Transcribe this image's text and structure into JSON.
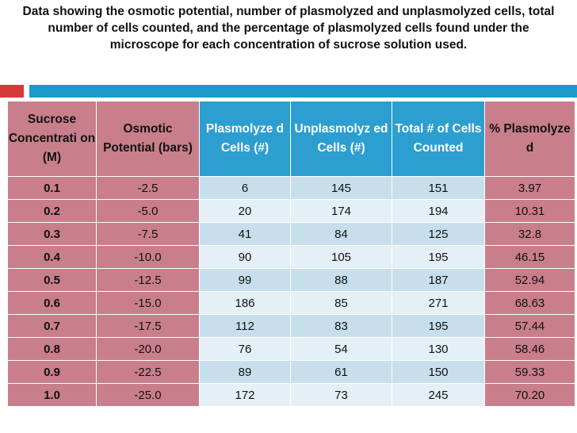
{
  "title": "Data showing the osmotic potential, number of plasmolyzed and unplasmolyzed cells, total number of cells counted, and the percentage of plasmolyzed cells found under the microscope for each concentration of sucrose solution used.",
  "headers": [
    "Sucrose Concentrati on (M)",
    "Osmotic Potential (bars)",
    "Plasmolyze d Cells (#)",
    "Unplasmolyz ed Cells (#)",
    "Total # of Cells Counted",
    "% Plasmolyze d"
  ],
  "rows": [
    [
      "0.1",
      "-2.5",
      "6",
      "145",
      "151",
      "3.97"
    ],
    [
      "0.2",
      "-5.0",
      "20",
      "174",
      "194",
      "10.31"
    ],
    [
      "0.3",
      "-7.5",
      "41",
      "84",
      "125",
      "32.8"
    ],
    [
      "0.4",
      "-10.0",
      "90",
      "105",
      "195",
      "46.15"
    ],
    [
      "0.5",
      "-12.5",
      "99",
      "88",
      "187",
      "52.94"
    ],
    [
      "0.6",
      "-15.0",
      "186",
      "85",
      "271",
      "68.63"
    ],
    [
      "0.7",
      "-17.5",
      "112",
      "83",
      "195",
      "57.44"
    ],
    [
      "0.8",
      "-20.0",
      "76",
      "54",
      "130",
      "58.46"
    ],
    [
      "0.9",
      "-22.5",
      "89",
      "61",
      "150",
      "59.33"
    ],
    [
      "1.0",
      "-25.0",
      "172",
      "73",
      "245",
      "70.20"
    ]
  ],
  "colors": {
    "accent_red": "#d7393b",
    "accent_blue": "#1a9bc9",
    "header_pink": "#c97e8c",
    "header_blue": "#2c9ed0"
  }
}
